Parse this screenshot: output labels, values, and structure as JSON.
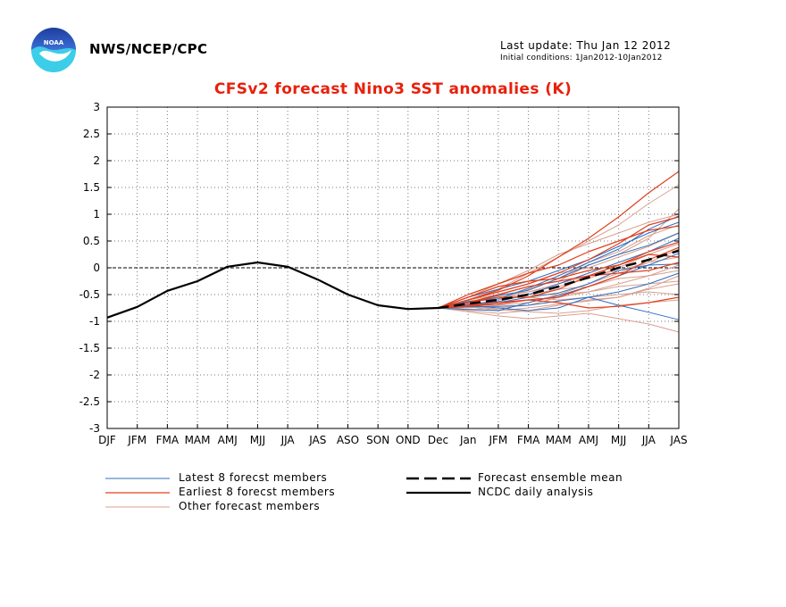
{
  "header": {
    "agency": "NWS/NCEP/CPC",
    "last_update": "Last update: Thu Jan 12 2012",
    "initial_conditions": "Initial conditions: 1Jan2012-10Jan2012",
    "logo_text": "NOAA"
  },
  "colors": {
    "title": "#e8200c",
    "latest": "#2f6fc0",
    "earliest": "#e0401e",
    "other": "#d9a090",
    "mean": "#000000",
    "analysis": "#000000"
  },
  "chart_data": {
    "type": "line",
    "title": "CFSv2 forecast Nino3 SST anomalies (K)",
    "ylim": [
      -3,
      3
    ],
    "yticks": [
      "3",
      "2.5",
      "2",
      "1.5",
      "1",
      "0.5",
      "0",
      "-0.5",
      "-1",
      "-1.5",
      "-2",
      "-2.5",
      "-3"
    ],
    "categories": [
      "DJF",
      "JFM",
      "FMA",
      "MAM",
      "AMJ",
      "MJJ",
      "JJA",
      "JAS",
      "ASO",
      "SON",
      "OND",
      "Dec",
      "Jan",
      "JFM",
      "FMA",
      "MAM",
      "AMJ",
      "MJJ",
      "JJA",
      "JAS"
    ],
    "grid": true,
    "zero_line": true,
    "analysis": {
      "name": "NCDC daily analysis",
      "values": [
        -0.93,
        -0.73,
        -0.43,
        -0.25,
        0.02,
        0.1,
        0.02,
        -0.22,
        -0.5,
        -0.7,
        -0.77,
        -0.75
      ]
    },
    "ensemble_mean": {
      "name": "Forecast ensemble mean",
      "start_index": 11,
      "values": [
        -0.75,
        -0.67,
        -0.6,
        -0.5,
        -0.35,
        -0.18,
        0.0,
        0.15,
        0.32
      ]
    },
    "latest_members": {
      "name": "Latest 8 forecst members",
      "start_index": 11,
      "series": [
        [
          -0.75,
          -0.73,
          -0.72,
          -0.7,
          -0.62,
          -0.55,
          -0.7,
          -0.83,
          -0.97
        ],
        [
          -0.75,
          -0.63,
          -0.58,
          -0.38,
          -0.15,
          0.1,
          0.35,
          0.72,
          0.97
        ],
        [
          -0.75,
          -0.72,
          -0.65,
          -0.55,
          -0.47,
          -0.3,
          -0.05,
          0.05,
          0.07
        ],
        [
          -0.75,
          -0.78,
          -0.8,
          -0.65,
          -0.52,
          -0.35,
          -0.15,
          0.05,
          0.27
        ],
        [
          -0.75,
          -0.65,
          -0.52,
          -0.42,
          -0.2,
          0.05,
          0.25,
          0.42,
          0.65
        ],
        [
          -0.75,
          -0.7,
          -0.75,
          -0.8,
          -0.75,
          -0.55,
          -0.45,
          -0.3,
          -0.1
        ],
        [
          -0.75,
          -0.55,
          -0.4,
          -0.25,
          -0.05,
          0.15,
          0.4,
          0.65,
          0.85
        ],
        [
          -0.75,
          -0.68,
          -0.63,
          -0.5,
          -0.3,
          -0.1,
          0.1,
          0.3,
          0.55
        ]
      ]
    },
    "earliest_members": {
      "name": "Earliest 8 forecst members",
      "start_index": 11,
      "series": [
        [
          -0.75,
          -0.6,
          -0.42,
          -0.15,
          0.2,
          0.55,
          0.95,
          1.4,
          1.8
        ],
        [
          -0.75,
          -0.6,
          -0.45,
          -0.3,
          -0.1,
          0.15,
          0.45,
          0.8,
          0.95
        ],
        [
          -0.75,
          -0.72,
          -0.68,
          -0.6,
          -0.55,
          -0.35,
          -0.15,
          0.15,
          0.38
        ],
        [
          -0.75,
          -0.55,
          -0.35,
          -0.25,
          -0.2,
          -0.05,
          0.05,
          0.25,
          0.2
        ],
        [
          -0.75,
          -0.65,
          -0.5,
          -0.35,
          -0.25,
          -0.15,
          -0.1,
          -0.05,
          0.1
        ],
        [
          -0.75,
          -0.7,
          -0.65,
          -0.6,
          -0.65,
          -0.75,
          -0.72,
          -0.65,
          -0.55
        ],
        [
          -0.75,
          -0.65,
          -0.55,
          -0.55,
          -0.4,
          -0.15,
          0.05,
          0.3,
          0.48
        ],
        [
          -0.75,
          -0.5,
          -0.3,
          -0.1,
          0.05,
          0.3,
          0.5,
          0.7,
          0.78
        ]
      ]
    },
    "other_members": {
      "name": "Other forecast members",
      "start_index": 11,
      "series": [
        [
          -0.75,
          -0.6,
          -0.4,
          -0.1,
          0.2,
          0.5,
          0.8,
          1.2,
          1.55
        ],
        [
          -0.75,
          -0.7,
          -0.6,
          -0.4,
          -0.2,
          0.1,
          0.3,
          0.6,
          0.8
        ],
        [
          -0.75,
          -0.8,
          -0.85,
          -0.8,
          -0.7,
          -0.6,
          -0.55,
          -0.4,
          -0.3
        ],
        [
          -0.75,
          -0.75,
          -0.7,
          -0.65,
          -0.5,
          -0.3,
          -0.1,
          0.1,
          0.35
        ],
        [
          -0.75,
          -0.82,
          -0.9,
          -0.95,
          -0.9,
          -0.85,
          -0.95,
          -1.05,
          -1.2
        ],
        [
          -0.75,
          -0.6,
          -0.45,
          -0.3,
          -0.1,
          0.0,
          0.2,
          0.4,
          0.65
        ],
        [
          -0.75,
          -0.65,
          -0.55,
          -0.5,
          -0.4,
          -0.35,
          -0.2,
          -0.15,
          -0.05
        ],
        [
          -0.75,
          -0.7,
          -0.65,
          -0.55,
          -0.6,
          -0.55,
          -0.5,
          -0.45,
          -0.5
        ],
        [
          -0.75,
          -0.6,
          -0.5,
          -0.35,
          -0.25,
          0.05,
          0.25,
          0.55,
          1.1
        ],
        [
          -0.75,
          -0.72,
          -0.8,
          -0.75,
          -0.68,
          -0.62,
          -0.55,
          -0.38,
          -0.15
        ],
        [
          -0.75,
          -0.65,
          -0.5,
          -0.45,
          -0.3,
          -0.15,
          -0.05,
          0.1,
          0.2
        ],
        [
          -0.75,
          -0.55,
          -0.3,
          -0.05,
          0.25,
          0.45,
          0.65,
          0.85,
          1.0
        ],
        [
          -0.75,
          -0.78,
          -0.75,
          -0.7,
          -0.55,
          -0.45,
          -0.3,
          -0.15,
          0.05
        ],
        [
          -0.75,
          -0.7,
          -0.78,
          -0.82,
          -0.85,
          -0.8,
          -0.7,
          -0.65,
          -0.6
        ],
        [
          -0.75,
          -0.62,
          -0.55,
          -0.45,
          -0.35,
          -0.2,
          0.0,
          0.25,
          0.45
        ],
        [
          -0.75,
          -0.7,
          -0.6,
          -0.5,
          -0.5,
          -0.45,
          -0.35,
          -0.3,
          -0.25
        ]
      ]
    }
  }
}
